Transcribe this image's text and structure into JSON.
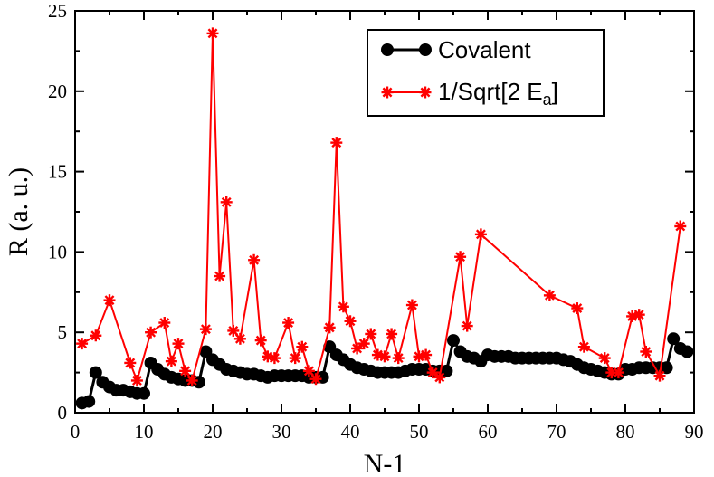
{
  "chart_data": {
    "type": "line",
    "xlabel": "N-1",
    "ylabel": "R (a. u.)",
    "xlim": [
      0,
      90
    ],
    "ylim": [
      0,
      25
    ],
    "xticks": [
      0,
      10,
      20,
      30,
      40,
      50,
      60,
      70,
      80,
      90
    ],
    "yticks": [
      0,
      5,
      10,
      15,
      20,
      25
    ],
    "legend_position": "top-right",
    "series": [
      {
        "name": "Covalent",
        "color": "#000000",
        "marker": "circle",
        "x": [
          1,
          2,
          3,
          4,
          5,
          6,
          7,
          8,
          9,
          10,
          11,
          12,
          13,
          14,
          15,
          16,
          17,
          18,
          19,
          20,
          21,
          22,
          23,
          24,
          25,
          26,
          27,
          28,
          29,
          30,
          31,
          32,
          33,
          34,
          35,
          36,
          37,
          38,
          39,
          40,
          41,
          42,
          43,
          44,
          45,
          46,
          47,
          48,
          49,
          50,
          51,
          52,
          53,
          54,
          55,
          56,
          57,
          58,
          59,
          60,
          61,
          62,
          63,
          64,
          65,
          66,
          67,
          68,
          69,
          70,
          71,
          72,
          73,
          74,
          75,
          76,
          77,
          78,
          79,
          80,
          81,
          82,
          83,
          84,
          85,
          86,
          87,
          88,
          89
        ],
        "y": [
          0.6,
          0.7,
          2.5,
          1.9,
          1.6,
          1.4,
          1.4,
          1.3,
          1.2,
          1.2,
          3.1,
          2.7,
          2.4,
          2.2,
          2.1,
          2.0,
          2.0,
          1.9,
          3.8,
          3.3,
          3.0,
          2.7,
          2.6,
          2.5,
          2.4,
          2.4,
          2.3,
          2.2,
          2.3,
          2.3,
          2.3,
          2.3,
          2.3,
          2.2,
          2.2,
          2.2,
          4.1,
          3.6,
          3.3,
          3.0,
          2.8,
          2.7,
          2.6,
          2.5,
          2.5,
          2.5,
          2.5,
          2.6,
          2.7,
          2.7,
          2.7,
          2.6,
          2.6,
          2.6,
          4.5,
          3.8,
          3.5,
          3.4,
          3.2,
          3.6,
          3.5,
          3.5,
          3.5,
          3.4,
          3.4,
          3.4,
          3.4,
          3.4,
          3.4,
          3.4,
          3.3,
          3.2,
          3.0,
          2.8,
          2.7,
          2.6,
          2.5,
          2.4,
          2.4,
          2.7,
          2.7,
          2.8,
          2.8,
          2.8,
          2.8,
          2.8,
          4.6,
          4.0,
          3.8
        ]
      },
      {
        "name": "1/Sqrt[2 E_a]",
        "color": "#ff0000",
        "marker": "asterisk",
        "x": [
          1,
          3,
          5,
          8,
          9,
          11,
          13,
          14,
          15,
          16,
          17,
          19,
          20,
          21,
          22,
          23,
          24,
          26,
          27,
          28,
          29,
          31,
          32,
          33,
          34,
          35,
          37,
          38,
          39,
          40,
          41,
          42,
          43,
          44,
          45,
          46,
          47,
          49,
          50,
          51,
          52,
          53,
          56,
          57,
          59,
          69,
          73,
          74,
          77,
          78,
          79,
          81,
          82,
          83,
          85,
          88
        ],
        "y": [
          4.3,
          4.8,
          7.0,
          3.1,
          2.0,
          5.0,
          5.6,
          3.2,
          4.3,
          2.6,
          2.0,
          5.2,
          23.6,
          8.5,
          13.1,
          5.1,
          4.6,
          9.5,
          4.5,
          3.5,
          3.4,
          5.6,
          3.4,
          4.1,
          2.6,
          2.1,
          5.3,
          16.8,
          6.6,
          5.7,
          4.0,
          4.3,
          4.9,
          3.6,
          3.5,
          4.9,
          3.4,
          6.7,
          3.5,
          3.6,
          2.5,
          2.2,
          9.7,
          5.4,
          11.1,
          7.3,
          6.5,
          4.1,
          3.4,
          2.5,
          2.5,
          6.0,
          6.1,
          3.8,
          2.3,
          11.6
        ]
      }
    ],
    "legend": [
      {
        "label": "Covalent"
      },
      {
        "label": "1/Sqrt[2 E",
        "sub": "a",
        "suffix": "]"
      }
    ]
  }
}
